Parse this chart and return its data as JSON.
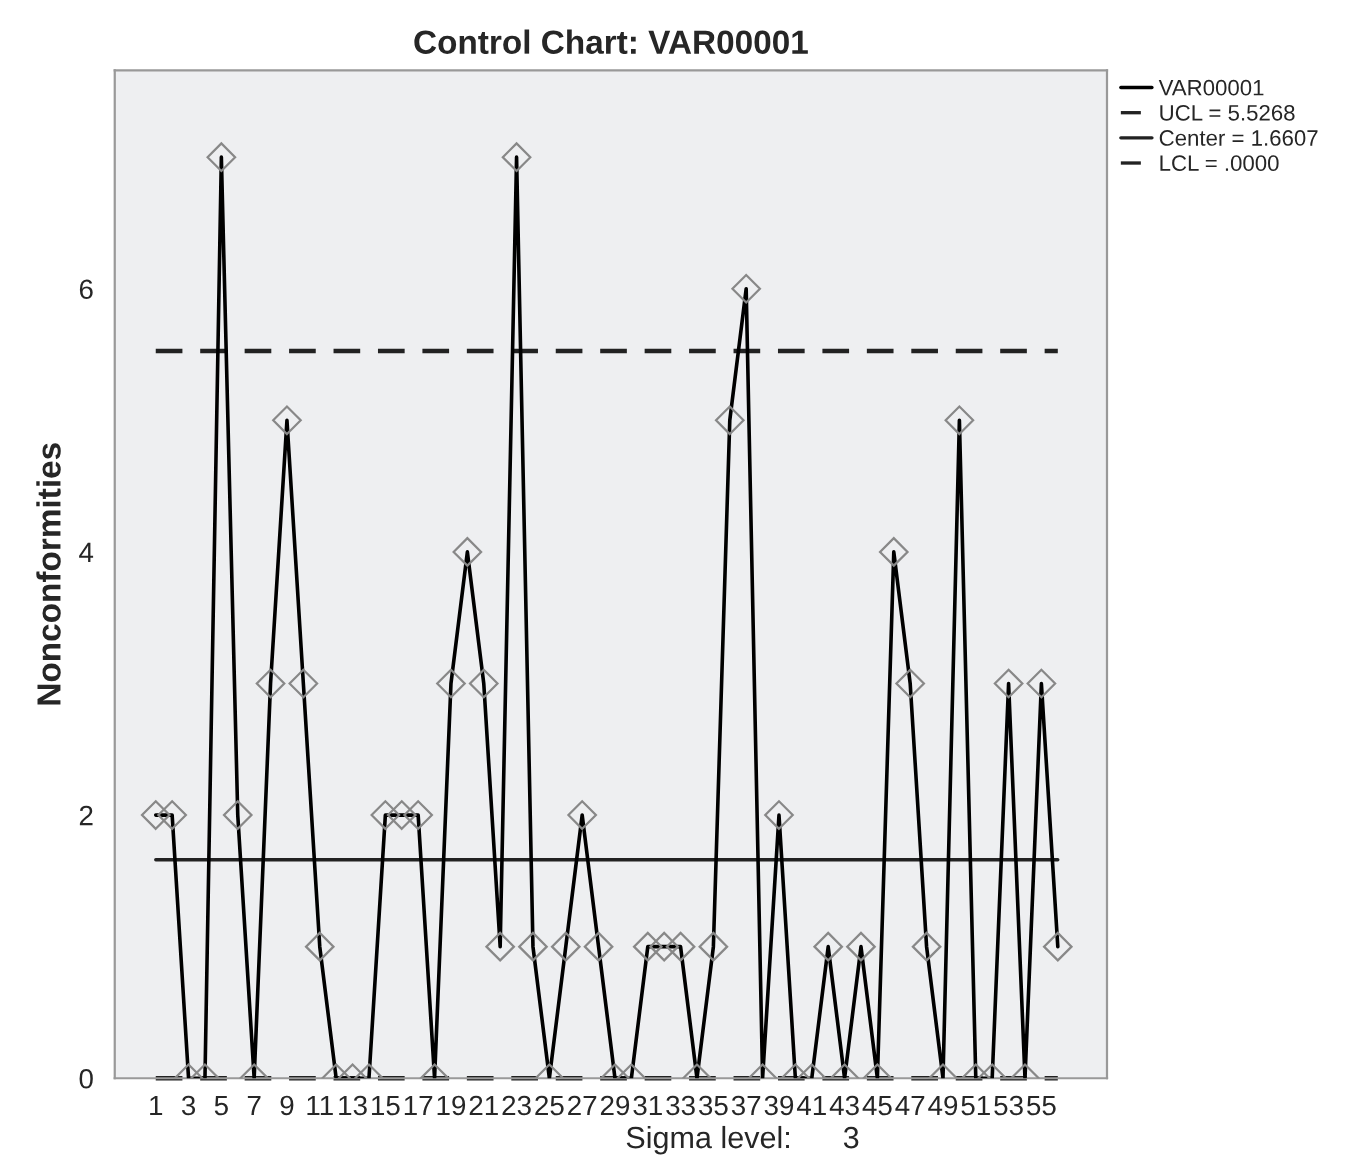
{
  "chart_data": {
    "type": "line",
    "title": "Control Chart: VAR00001",
    "ylabel": "Nonconformities",
    "categories": [
      "1",
      null,
      "3",
      null,
      "5",
      null,
      "7",
      null,
      "9",
      null,
      "11",
      null,
      "13",
      null,
      "15",
      null,
      "17",
      null,
      "19",
      null,
      "21",
      null,
      "23",
      null,
      "25",
      null,
      "27",
      null,
      "29",
      null,
      "31",
      null,
      "33",
      null,
      "35",
      null,
      "37",
      null,
      "39",
      null,
      "41",
      null,
      "43",
      null,
      "45",
      null,
      "47",
      null,
      "49",
      null,
      "51",
      null,
      "53",
      null,
      "55",
      null
    ],
    "series": [
      {
        "name": "VAR00001",
        "color": "#000000",
        "values": [
          2,
          2,
          0,
          0,
          7,
          2,
          0,
          3,
          5,
          3,
          1,
          0,
          0,
          0,
          2,
          2,
          2,
          0,
          3,
          4,
          3,
          1,
          7,
          1,
          0,
          1,
          2,
          1,
          0,
          0,
          1,
          1,
          1,
          0,
          1,
          5,
          6,
          0,
          2,
          0,
          0,
          1,
          0,
          1,
          0,
          4,
          3,
          1,
          0,
          5,
          0,
          0,
          3,
          0,
          3,
          1
        ]
      }
    ],
    "ylim": [
      0,
      7.66
    ],
    "yticks": [
      0,
      2,
      4,
      6
    ],
    "ref_lines": [
      {
        "axis": "y",
        "value": 5.5268,
        "label": "UCL = 5.5268",
        "color": "#222222",
        "line_style": "dashed"
      },
      {
        "axis": "y",
        "value": 1.6607,
        "label": "Center = 1.6607",
        "color": "#222222",
        "line_style": "solid"
      },
      {
        "axis": "y",
        "value": 0,
        "label": "LCL = .0000",
        "color": "#222222",
        "line_style": "dashed"
      }
    ],
    "annotations": [
      "Sigma level:      3"
    ],
    "marker": "diamond",
    "line_style": "solid",
    "grid": false,
    "legend": "top right"
  }
}
